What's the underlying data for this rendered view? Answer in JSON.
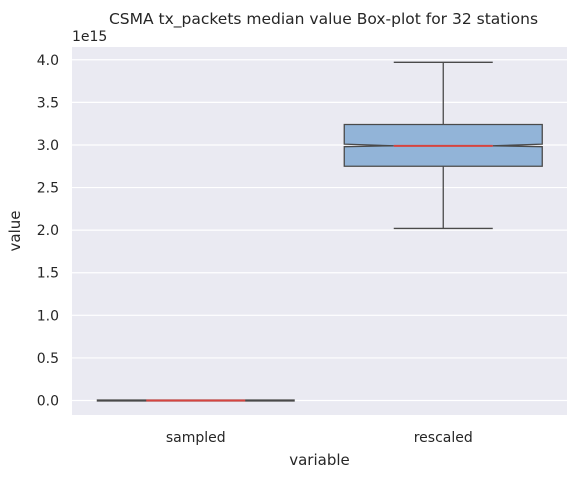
{
  "chart_data": {
    "type": "box",
    "title": "CSMA tx_packets median value Box-plot for 32 stations",
    "xlabel": "variable",
    "ylabel": "value",
    "offset_label": "1e15",
    "categories": [
      "sampled",
      "rescaled"
    ],
    "y_ticks": [
      "0.0",
      "0.5",
      "1.0",
      "1.5",
      "2.0",
      "2.5",
      "3.0",
      "3.5",
      "4.0"
    ],
    "y_tick_values": [
      0,
      0.5,
      1.0,
      1.5,
      2.0,
      2.5,
      3.0,
      3.5,
      4.0
    ],
    "ylim": [
      -0.17,
      4.15
    ],
    "y_scale_factor": 1000000000000000.0,
    "notched": true,
    "boxes": [
      {
        "name": "sampled",
        "whisker_low": 0.0,
        "q1": 0.0,
        "median": 0.0,
        "notch_low": 0.0,
        "notch_high": 0.0,
        "q3": 0.0,
        "whisker_high": 0.0
      },
      {
        "name": "rescaled",
        "whisker_low": 2.02,
        "q1": 2.75,
        "median": 2.99,
        "notch_low": 2.98,
        "notch_high": 3.01,
        "q3": 3.24,
        "whisker_high": 3.97
      }
    ],
    "grid": true,
    "box_color": "#92b4d8",
    "median_color": "#d6443f",
    "edge_color": "#4a4a4a",
    "background_color": "#eaeaf2",
    "grid_color": "#ffffff"
  }
}
